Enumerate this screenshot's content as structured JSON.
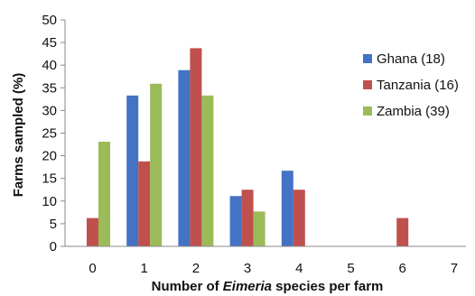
{
  "chart_data": {
    "type": "bar",
    "categories": [
      "0",
      "1",
      "2",
      "3",
      "4",
      "5",
      "6",
      "7"
    ],
    "series": [
      {
        "name": "Ghana (18)",
        "color": "#4472C4",
        "values": [
          0,
          33.3,
          38.9,
          11.1,
          16.7,
          0,
          0,
          0
        ]
      },
      {
        "name": "Tanzania (16)",
        "color": "#C0504D",
        "values": [
          6.25,
          18.75,
          43.75,
          12.5,
          12.5,
          0,
          6.25,
          0
        ]
      },
      {
        "name": "Zambia (39)",
        "color": "#9BBB59",
        "values": [
          23.1,
          35.9,
          33.3,
          7.7,
          0,
          0,
          0,
          0
        ]
      }
    ],
    "xlabel": {
      "prefix": "Number of ",
      "italic": "Eimeria",
      "suffix": " species per farm"
    },
    "ylabel": "Farms sampled (%)",
    "ylim": [
      0,
      50
    ],
    "yticks": [
      "0",
      "5",
      "10",
      "15",
      "20",
      "25",
      "30",
      "35",
      "40",
      "45",
      "50"
    ],
    "grid": false,
    "legend_position": "right"
  }
}
